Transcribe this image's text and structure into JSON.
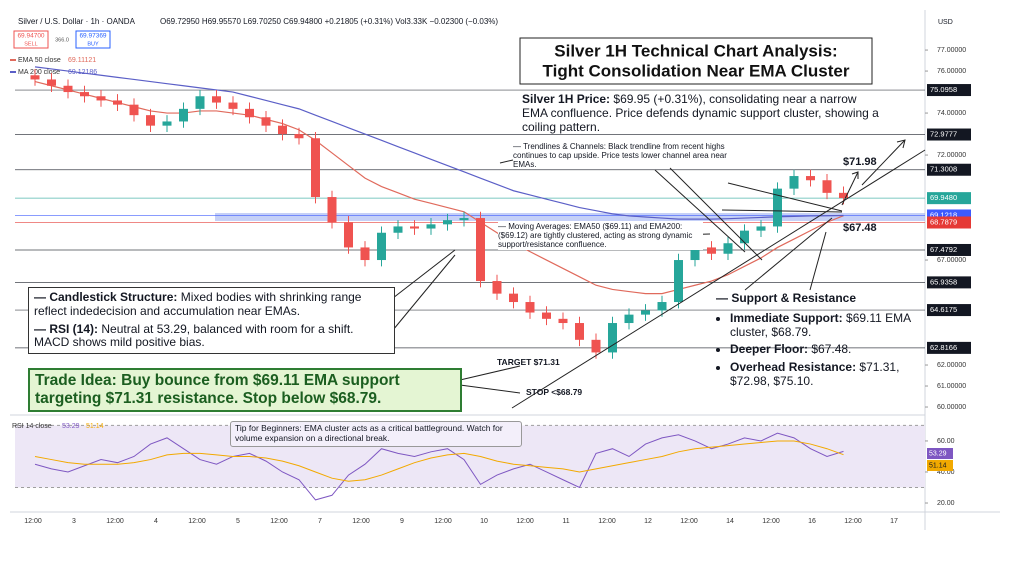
{
  "header": {
    "symbol": "Silver / U.S. Dollar · 1h · OANDA",
    "ohlc": "O69.72950 H69.95570 L69.70250 C69.94800 +0.21805 (+0.31%) Vol3.33K −0.02300 (−0.03%)",
    "sell_price": "69.94700",
    "sell": "SELL",
    "spread": "366.0",
    "buy_price": "69.97369",
    "buy": "BUY",
    "currency": "USD"
  },
  "chart_data": [
    {
      "type": "candlestick",
      "title": [
        "Silver 1H Technical Chart Analysis:",
        "Tight Consolidation Near EMA Cluster"
      ],
      "open": [
        75.8,
        75.6,
        75.3,
        75.0,
        74.8,
        74.6,
        74.4,
        73.9,
        73.4,
        73.6,
        74.2,
        74.8,
        74.5,
        74.2,
        73.8,
        73.4,
        73.0,
        72.8,
        70.0,
        68.8,
        67.6,
        67.0,
        68.3,
        68.6,
        68.5,
        68.7,
        68.9,
        69.0,
        66.0,
        65.4,
        65.0,
        64.5,
        64.2,
        64.0,
        63.2,
        62.6,
        64.0,
        64.4,
        64.6,
        65.0,
        67.0,
        67.6,
        67.3,
        67.8,
        68.4,
        68.6,
        70.4,
        71.0,
        70.8,
        70.2
      ],
      "high": [
        76.1,
        75.9,
        75.6,
        75.3,
        75.1,
        74.9,
        74.7,
        74.2,
        73.9,
        74.5,
        75.1,
        75.1,
        74.8,
        74.5,
        74.1,
        73.7,
        73.3,
        73.1,
        70.3,
        69.1,
        67.9,
        68.6,
        68.9,
        68.9,
        69.0,
        69.2,
        69.3,
        69.3,
        66.3,
        65.7,
        65.3,
        64.8,
        64.5,
        64.3,
        63.5,
        64.3,
        64.7,
        64.9,
        65.3,
        67.3,
        67.9,
        67.9,
        68.1,
        68.7,
        68.9,
        70.7,
        71.3,
        71.3,
        71.1,
        70.5
      ],
      "low": [
        75.3,
        75.0,
        74.7,
        74.5,
        74.3,
        74.1,
        73.6,
        73.1,
        73.1,
        73.3,
        73.9,
        74.2,
        73.9,
        73.5,
        73.1,
        72.7,
        72.5,
        69.7,
        68.5,
        67.3,
        66.7,
        66.7,
        68.0,
        68.2,
        68.2,
        68.4,
        68.6,
        65.7,
        65.1,
        64.7,
        64.2,
        63.9,
        63.7,
        62.9,
        62.3,
        62.3,
        63.7,
        64.1,
        64.3,
        64.7,
        66.7,
        67.0,
        67.0,
        67.5,
        68.1,
        68.3,
        70.1,
        70.5,
        69.9,
        69.65
      ],
      "close": [
        75.6,
        75.3,
        75.0,
        74.8,
        74.6,
        74.4,
        73.9,
        73.4,
        73.6,
        74.2,
        74.8,
        74.5,
        74.2,
        73.8,
        73.4,
        73.0,
        72.8,
        70.0,
        68.8,
        67.6,
        67.0,
        68.3,
        68.6,
        68.5,
        68.7,
        68.9,
        69.0,
        66.0,
        65.4,
        65.0,
        64.5,
        64.2,
        64.0,
        63.2,
        62.6,
        64.0,
        64.4,
        64.6,
        65.0,
        67.0,
        67.6,
        67.3,
        67.8,
        68.4,
        68.6,
        70.4,
        71.0,
        70.8,
        70.2,
        69.95
      ],
      "up_color": "#26a69a",
      "down_color": "#ef5350",
      "series": [
        {
          "name": "EMA 50 close",
          "legend_value": "69.11121",
          "color": "#e06a5c",
          "values": [
            75.5,
            75.3,
            75.1,
            74.9,
            74.7,
            74.5,
            74.3,
            74.1,
            74.0,
            74.0,
            74.1,
            74.1,
            74.0,
            73.9,
            73.7,
            73.5,
            73.2,
            72.7,
            72.1,
            71.5,
            70.9,
            70.5,
            70.2,
            69.9,
            69.7,
            69.5,
            69.3,
            68.8,
            68.3,
            67.8,
            67.4,
            67.0,
            66.6,
            66.2,
            65.8,
            65.6,
            65.5,
            65.4,
            65.4,
            65.6,
            65.8,
            66.0,
            66.3,
            66.7,
            67.1,
            67.6,
            68.0,
            68.4,
            68.8,
            69.11
          ]
        },
        {
          "name": "MA 200 close",
          "legend_value": "69.12186",
          "color": "#5b5fc7",
          "values": [
            76.2,
            76.1,
            76.0,
            75.9,
            75.8,
            75.7,
            75.6,
            75.5,
            75.4,
            75.3,
            75.2,
            75.1,
            75.0,
            74.8,
            74.6,
            74.4,
            74.2,
            73.9,
            73.6,
            73.3,
            73.0,
            72.7,
            72.4,
            72.1,
            71.8,
            71.5,
            71.2,
            70.9,
            70.6,
            70.3,
            70.1,
            69.9,
            69.7,
            69.5,
            69.35,
            69.2,
            69.1,
            69.05,
            69.0,
            68.95,
            68.95,
            68.95,
            68.97,
            69.0,
            69.03,
            69.06,
            69.08,
            69.1,
            69.11,
            69.12
          ]
        }
      ],
      "ylim": [
        59.62,
        78.67
      ],
      "yticks": [
        {
          "value": 77,
          "label": "77.00000"
        },
        {
          "value": 76,
          "label": "76.00000"
        },
        {
          "value": 74,
          "label": "74.00000"
        },
        {
          "value": 72,
          "label": "72.00000"
        },
        {
          "value": 67,
          "label": "67.00000"
        },
        {
          "value": 62,
          "label": "62.00000"
        },
        {
          "value": 61,
          "label": "61.00000"
        },
        {
          "value": 60,
          "label": "60.00000"
        }
      ],
      "levels": [
        {
          "value": 75.0958,
          "color": "#131722"
        },
        {
          "value": 72.9777,
          "color": "#131722"
        },
        {
          "value": 71.3008,
          "color": "#131722"
        },
        {
          "value": 69.948,
          "label": "69.9480",
          "color": "#26a69a"
        },
        {
          "value": 69.1218,
          "color": "#3d5afe"
        },
        {
          "value": 68.7879,
          "color": "#e53935"
        },
        {
          "value": 67.4792,
          "color": "#131722"
        },
        {
          "value": 65.9358,
          "color": "#131722"
        },
        {
          "value": 64.6175,
          "color": "#131722"
        },
        {
          "value": 62.8166,
          "color": "#131722"
        }
      ],
      "zone": [
        68.86,
        69.24
      ],
      "zone_color": "#9fb0f2",
      "time_labels": [
        "12:00",
        "3",
        "12:00",
        "4",
        "12:00",
        "5",
        "12:00",
        "7",
        "12:00",
        "9",
        "12:00",
        "10",
        "12:00",
        "11",
        "12:00",
        "12",
        "12:00",
        "14",
        "12:00",
        "16",
        "12:00",
        "17"
      ],
      "grid": false
    },
    {
      "type": "line",
      "label": "RSI 14 close",
      "ylim": [
        15.5,
        73.5
      ],
      "yticks": [
        {
          "value": 60,
          "label": "60.00"
        },
        {
          "value": 40,
          "label": "40.00"
        },
        {
          "value": 20,
          "label": "20.00"
        }
      ],
      "band": [
        30,
        70
      ],
      "band_color": "#ede7f6",
      "series": [
        {
          "color": "#7e57c2",
          "values": [
            45,
            42,
            40,
            44,
            48,
            46,
            50,
            58,
            62,
            55,
            48,
            45,
            50,
            52,
            47,
            40,
            35,
            22,
            25,
            38,
            45,
            55,
            52,
            50,
            53,
            55,
            48,
            32,
            38,
            42,
            45,
            40,
            35,
            30,
            52,
            55,
            50,
            58,
            62,
            64,
            60,
            55,
            58,
            62,
            60,
            65,
            62,
            55,
            50,
            53.29
          ]
        },
        {
          "color": "#f2a900",
          "values": [
            50,
            48,
            46,
            45,
            45,
            45,
            46,
            48,
            51,
            52,
            52,
            51,
            50,
            50,
            49,
            47,
            44,
            40,
            36,
            34,
            35,
            38,
            42,
            46,
            49,
            51,
            52,
            50,
            47,
            45,
            44,
            43,
            42,
            40,
            42,
            44,
            46,
            48,
            50,
            53,
            55,
            56,
            57,
            58,
            59,
            60,
            60,
            58,
            55,
            51.14
          ]
        }
      ]
    }
  ],
  "annotations": {
    "price_head": "Silver 1H Price:",
    "price_text": " $69.95 (+0.31%), consolidating near a narrow EMA confluence. Price defends dynamic support cluster, showing a coiling pattern.",
    "trend_note": "— Trendlines & Channels: Black trendline from recent highs continues to cap upside. Price tests lower channel area near EMAs.",
    "ma_note": "— Moving Averages: EMA50 ($69.11) and EMA200: ($69.12) are tightly clustered, acting as strong dynamic support/resistance confluence.",
    "candle_head": "— Candlestick Structure:",
    "candle_text": " Mixed bodies with shrinking range reflect indedecision and accumulation near EMAs.",
    "rsi_head": "— RSI (14):",
    "rsi_text": " Neutral at 53.29, balanced with room for a shift. MACD shows mild positive bias.",
    "trade_idea": "Trade Idea: Buy bounce from $69.11 EMA support targeting $71.31 resistance. Stop below $68.79.",
    "target": "TARGET $71.31",
    "stop": "STOP <$68.79",
    "high_mark": "$71.98",
    "low_mark": "$67.48",
    "sr_head": "— Support & Resistance",
    "sr_items": [
      {
        "head": "Immediate Support:",
        "text": " $69.11 EMA cluster, $68.79."
      },
      {
        "head": "Deeper Floor:",
        "text": " $67.48."
      },
      {
        "head": "Overhead Resistance:",
        "text": " $71.31, $72.98, $75.10."
      }
    ],
    "tip": "Tip for Beginners: EMA cluster acts as a critical battleground. Watch for volume expansion on a directional break."
  }
}
